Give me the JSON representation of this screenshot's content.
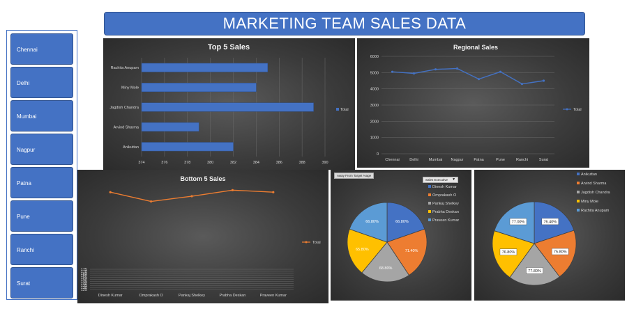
{
  "dashboard_title": "MARKETING TEAM SALES DATA",
  "slicer": {
    "items": [
      "Chennai",
      "Delhi",
      "Mumbai",
      "Nagpur",
      "Patna",
      "Pune",
      "Ranchi",
      "Surat"
    ]
  },
  "chart_data": [
    {
      "type": "bar",
      "title": "Top 5 Sales",
      "categories": [
        "Rachita Anupam",
        "Miny Mole",
        "Jagdish Chandra",
        "Arvind Sharma",
        "Anikuttan"
      ],
      "series": [
        {
          "name": "Total",
          "values": [
            385,
            384,
            389,
            379,
            382
          ]
        }
      ],
      "xlim": [
        374,
        390
      ],
      "x_ticks": [
        "374",
        "376",
        "378",
        "380",
        "382",
        "384",
        "386",
        "388",
        "390"
      ],
      "colors": {
        "bar": "#4472c4"
      },
      "legend": "right"
    },
    {
      "type": "line",
      "title": "Regional Sales",
      "categories": [
        "Chennai",
        "Delhi",
        "Mumbai",
        "Nagpur",
        "Patna",
        "Pune",
        "Ranchi",
        "Surat"
      ],
      "series": [
        {
          "name": "Total",
          "values": [
            5050,
            4950,
            5200,
            5250,
            4600,
            5050,
            4300,
            4500
          ]
        }
      ],
      "ylim": [
        0,
        6000
      ],
      "y_ticks": [
        "0",
        "1000",
        "2000",
        "3000",
        "4000",
        "5000",
        "6000"
      ],
      "colors": {
        "line": "#4472c4"
      },
      "legend": "right"
    },
    {
      "type": "line",
      "title": "Bottom 5 Sales",
      "categories": [
        "Dinesh Kumar",
        "Omprakash O",
        "Pankaj Shelkey",
        "Prabha Deskan",
        "Praveen Kumar"
      ],
      "series": [
        {
          "name": "Total",
          "values": [
            366,
            343,
            356,
            371,
            366
          ]
        }
      ],
      "ylim": [
        125,
        375
      ],
      "y_ticks": [
        "125",
        "130",
        "135",
        "140",
        "145",
        "150",
        "155",
        "160",
        "165",
        "170",
        "175"
      ],
      "colors": {
        "line": "#ed7d31"
      },
      "legend": "right"
    },
    {
      "type": "pie",
      "filter_label": "Away From Target %age",
      "field_label": "Sales Executive",
      "categories": [
        "Dinesh Kumar",
        "Omprakash O",
        "Pankaj Shelkey",
        "Prabha Deskan",
        "Praveen Kumar"
      ],
      "values": [
        66.8,
        71.4,
        68.8,
        65.8,
        66.8
      ],
      "labels": [
        "66.80%",
        "71.40%",
        "68.80%",
        "65.80%",
        "66.80%"
      ],
      "colors": [
        "#4472c4",
        "#ed7d31",
        "#a5a5a5",
        "#ffc000",
        "#5b9bd5"
      ],
      "legend": "top-right"
    },
    {
      "type": "pie",
      "categories": [
        "Anikuttan",
        "Arvind Sharma",
        "Jagdish Chandra",
        "Miny Mole",
        "Rachita Anupam"
      ],
      "values": [
        76.4,
        75.8,
        77.8,
        76.8,
        77.0
      ],
      "labels": [
        "76.40%",
        "75.80%",
        "77.80%",
        "76.80%",
        "77.00%"
      ],
      "colors": [
        "#4472c4",
        "#ed7d31",
        "#a5a5a5",
        "#ffc000",
        "#5b9bd5"
      ],
      "legend": "top-right"
    }
  ]
}
